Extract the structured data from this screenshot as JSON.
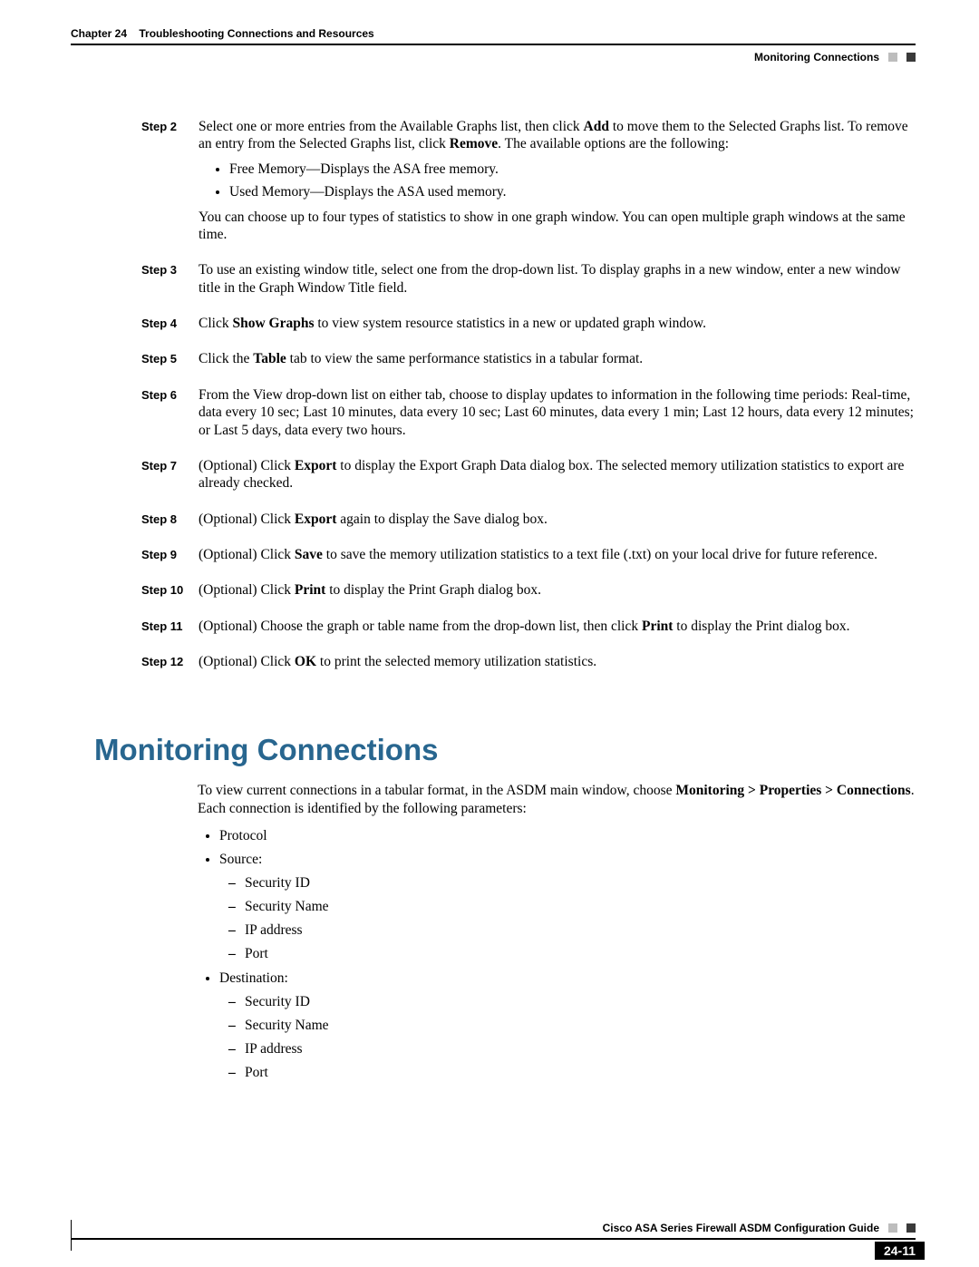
{
  "header": {
    "chapter_label": "Chapter 24",
    "chapter_title": "Troubleshooting Connections and Resources",
    "section_right": "Monitoring Connections"
  },
  "steps": [
    {
      "label": "Step 2",
      "p1_pre": "Select one or more entries from the Available Graphs list, then click ",
      "p1_b1": "Add",
      "p1_mid": " to move them to the Selected Graphs list. To remove an entry from the Selected Graphs list, click ",
      "p1_b2": "Remove",
      "p1_post": ". The available options are the following:",
      "bullets": [
        "Free Memory—Displays the ASA free memory.",
        "Used Memory—Displays the ASA used memory."
      ],
      "p2": "You can choose up to four types of statistics to show in one graph window. You can open multiple graph windows at the same time."
    },
    {
      "label": "Step 3",
      "plain": "To use an existing window title, select one from the drop-down list. To display graphs in a new window, enter a new window title in the Graph Window Title field."
    },
    {
      "label": "Step 4",
      "pre": "Click ",
      "bold": "Show Graphs",
      "post": " to view system resource statistics in a new or updated graph window."
    },
    {
      "label": "Step 5",
      "pre": "Click the ",
      "bold": "Table",
      "post": " tab to view the same performance statistics in a tabular format."
    },
    {
      "label": "Step 6",
      "plain": "From the View drop-down list on either tab, choose to display updates to information in the following time periods: Real-time, data every 10 sec; Last 10 minutes, data every 10 sec; Last 60 minutes, data every 1 min; Last 12 hours, data every 12 minutes; or Last 5 days, data every two hours."
    },
    {
      "label": "Step 7",
      "pre": "(Optional) Click ",
      "bold": "Export",
      "post": " to display the Export Graph Data dialog box. The selected memory utilization statistics to export are already checked."
    },
    {
      "label": "Step 8",
      "pre": "(Optional) Click ",
      "bold": "Export",
      "post": " again to display the Save dialog box."
    },
    {
      "label": "Step 9",
      "pre": "(Optional) Click ",
      "bold": "Save",
      "post": " to save the memory utilization statistics to a text file (.txt) on your local drive for future reference."
    },
    {
      "label": "Step 10",
      "pre": "(Optional) Click ",
      "bold": "Print",
      "post": " to display the Print Graph dialog box."
    },
    {
      "label": "Step 11",
      "pre": "(Optional) Choose the graph or table name from the drop-down list, then click ",
      "bold": "Print",
      "post": " to display the Print dialog box."
    },
    {
      "label": "Step 12",
      "pre": "(Optional) Click ",
      "bold": "OK",
      "post": " to print the selected memory utilization statistics."
    }
  ],
  "section": {
    "heading": "Monitoring Connections",
    "intro_pre": "To view current connections in a tabular format, in the ASDM main window, choose ",
    "intro_bold": "Monitoring > Properties > Connections",
    "intro_post": ". Each connection is identified by the following parameters:",
    "bullets": [
      {
        "text": "Protocol"
      },
      {
        "text": "Source:",
        "sub": [
          "Security ID",
          "Security Name",
          "IP address",
          "Port"
        ]
      },
      {
        "text": "Destination:",
        "sub": [
          "Security ID",
          "Security Name",
          "IP address",
          "Port"
        ]
      }
    ]
  },
  "footer": {
    "guide_title": "Cisco ASA Series Firewall ASDM Configuration Guide",
    "page_number": "24-11"
  },
  "colors": {
    "heading": "#28668f",
    "text": "#000000",
    "square_dark": "#3a3a3a",
    "square_light": "#bdbdbd"
  }
}
